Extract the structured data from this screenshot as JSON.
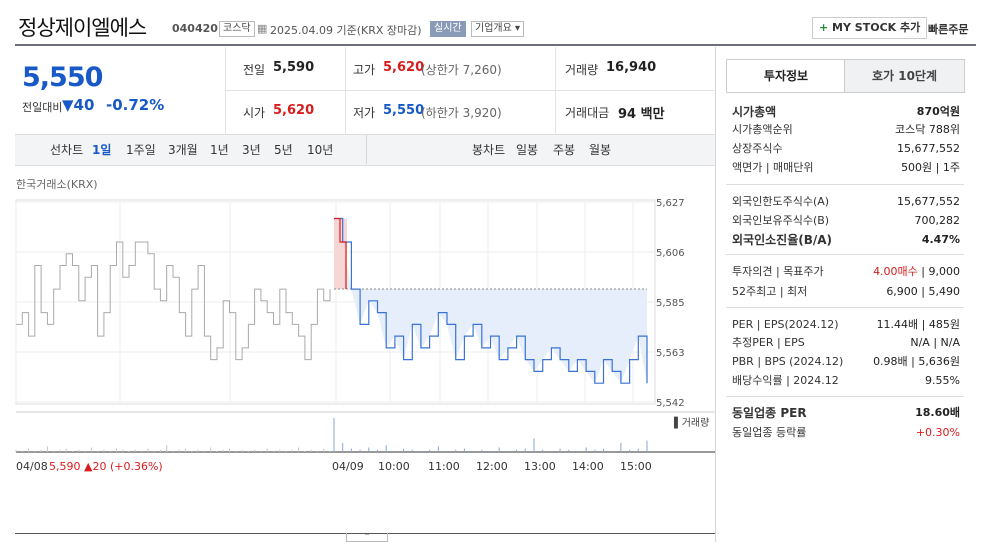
{
  "header": {
    "stock_name": "정상제이엘에스",
    "stock_code": "040420",
    "market_tag": "코스닥",
    "date_text": "2025.04.09 기준(KRX 장마감)",
    "realtime_tag": "실시간",
    "company_info_label": "기업개요",
    "my_stock_button": "MY STOCK 추가",
    "quick_order": "빠른주문"
  },
  "quote": {
    "price": "5,550",
    "change_label": "전일대비",
    "change_value": "40",
    "change_rate": "-0.72%",
    "prev_close_label": "전일",
    "prev_close": "5,590",
    "high_label": "고가",
    "high": "5,620",
    "upper_limit": "(상한가 7,260)",
    "volume_label": "거래량",
    "volume": "16,940",
    "open_label": "시가",
    "open": "5,620",
    "low_label": "저가",
    "low": "5,550",
    "lower_limit": "(하한가 3,920)",
    "amount_label": "거래대금",
    "amount": "94 백만"
  },
  "period_bar": {
    "line_chart_label": "선차트",
    "periods": [
      "1일",
      "1주일",
      "3개월",
      "1년",
      "3년",
      "5년",
      "10년"
    ],
    "candle_chart_label": "봉차트",
    "candles": [
      "일봉",
      "주봉",
      "월봉"
    ]
  },
  "chart_data": {
    "type": "line",
    "source_label": "한국거래소(KRX)",
    "y_ticks": [
      "5,627",
      "5,606",
      "5,585",
      "5,563",
      "5,542"
    ],
    "ylim": [
      5542,
      5627
    ],
    "prev_close": 5590,
    "x_ticks": [
      "04/08",
      "04/09",
      "10:00",
      "11:00",
      "12:00",
      "13:00",
      "14:00",
      "15:00"
    ],
    "volume_legend": "거래량",
    "prev_day_summary": {
      "date": "04/08",
      "price": "5,590",
      "change": "▲20 (+0.36%)"
    },
    "prev_day_series": [
      5575,
      5580,
      5570,
      5600,
      5580,
      5575,
      5590,
      5600,
      5605,
      5600,
      5585,
      5595,
      5600,
      5570,
      5580,
      5600,
      5610,
      5595,
      5600,
      5610,
      5610,
      5605,
      5590,
      5585,
      5600,
      5595,
      5580,
      5570,
      5590,
      5600,
      5570,
      5560,
      5565,
      5585,
      5580,
      5560,
      5565,
      5575,
      5590,
      5585,
      5580,
      5575,
      5590,
      5580,
      5575,
      5570,
      5560,
      5575,
      5590,
      5585,
      5590
    ],
    "today_series": [
      5620,
      5610,
      5590,
      5575,
      5585,
      5580,
      5565,
      5570,
      5560,
      5575,
      5565,
      5570,
      5580,
      5575,
      5560,
      5570,
      5575,
      5565,
      5570,
      5560,
      5565,
      5570,
      5560,
      5555,
      5560,
      5565,
      5560,
      5555,
      5560,
      5555,
      5550,
      5560,
      5555,
      5550,
      5560,
      5570,
      5550
    ],
    "volume_prev": [
      2,
      1,
      3,
      1,
      2,
      5,
      1,
      2,
      3,
      1,
      2,
      1,
      4,
      1,
      2,
      1,
      3,
      2,
      1,
      2,
      1,
      3,
      1,
      2,
      6,
      1,
      2,
      3,
      1,
      2,
      1,
      4,
      1,
      2,
      3,
      1,
      2,
      1,
      2,
      1,
      3,
      1,
      2,
      1,
      2,
      4,
      1,
      2,
      1,
      3,
      1
    ],
    "volume_today": [
      30,
      8,
      3,
      2,
      4,
      2,
      6,
      1,
      3,
      2,
      1,
      2,
      5,
      1,
      2,
      3,
      1,
      2,
      1,
      4,
      1,
      2,
      3,
      12,
      2,
      1,
      3,
      2,
      1,
      4,
      2,
      3,
      1,
      8,
      2,
      3,
      10
    ]
  },
  "right_panel": {
    "tab_invest": "투자정보",
    "tab_hoga": "호가 10단계",
    "rows": [
      {
        "k": "시가총액",
        "v": "870억원",
        "bold": true
      },
      {
        "k": "시가총액순위",
        "v": "코스닥 788위"
      },
      {
        "k": "상장주식수",
        "v": "15,677,552"
      },
      {
        "k": "액면가 | 매매단위",
        "v": "500원 | 1주"
      },
      {
        "k": "외국인한도주식수(A)",
        "v": "15,677,552"
      },
      {
        "k": "외국인보유주식수(B)",
        "v": "700,282"
      },
      {
        "k": "외국인소진율(B/A)",
        "v": "4.47%",
        "bold": true
      },
      {
        "k": "투자의견 | 목표주가",
        "v": "4.00매수 | 9,000"
      },
      {
        "k": "52주최고 | 최저",
        "v": "6,900 | 5,490"
      },
      {
        "k": "PER | EPS(2024.12)",
        "v": "11.44배 | 485원"
      },
      {
        "k": "추정PER | EPS",
        "v": "N/A | N/A"
      },
      {
        "k": "PBR | BPS (2024.12)",
        "v": "0.98배 | 5,636원"
      },
      {
        "k": "배당수익률 | 2024.12",
        "v": "9.55%"
      },
      {
        "k": "동일업종 PER",
        "v": "18.60배",
        "bold": true
      },
      {
        "k": "동일업종 등락률",
        "v": "+0.30%"
      }
    ]
  },
  "colors": {
    "accent_blue": "#1759c6",
    "accent_red": "#d71d1d",
    "line_blue": "#3a73d4",
    "fill_blue": "#e6eefb",
    "fill_red": "#f7d6d6",
    "line_gray": "#aaaaaa"
  }
}
